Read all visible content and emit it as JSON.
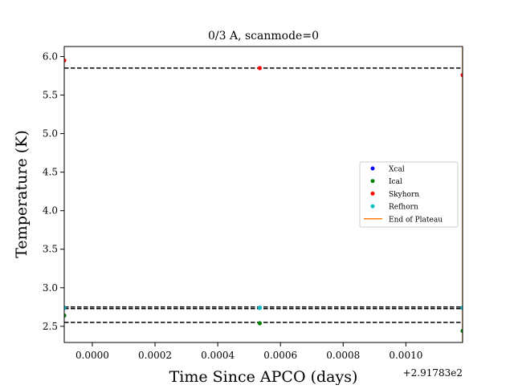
{
  "chart_data": {
    "type": "scatter",
    "title": "0/3 A, scanmode=0",
    "xlabel": "Time Since APCO (days)",
    "ylabel": "Temperature (K)",
    "x_offset_label": "+2.91783e2",
    "xlim": [
      -8.95e-05,
      0.0011809
    ],
    "ylim": [
      2.29,
      6.13
    ],
    "x_ticks": [
      0.0,
      0.0002,
      0.0004,
      0.0006,
      0.0008,
      0.001
    ],
    "x_tick_labels": [
      "0.0000",
      "0.0002",
      "0.0004",
      "0.0006",
      "0.0008",
      "0.0010"
    ],
    "y_ticks": [
      2.5,
      3.0,
      3.5,
      4.0,
      4.5,
      5.0,
      5.5,
      6.0
    ],
    "y_tick_labels": [
      "2.5",
      "3.0",
      "3.5",
      "4.0",
      "4.5",
      "5.0",
      "5.5",
      "6.0"
    ],
    "grid": false,
    "legend_position": "center-right",
    "series": [
      {
        "name": "Xcal",
        "color": "#0000ff",
        "x": [
          -8.95e-05,
          0.000534,
          0.0011809
        ],
        "y": [
          2.74,
          2.74,
          2.74
        ]
      },
      {
        "name": "Ical",
        "color": "#008000",
        "x": [
          -8.95e-05,
          0.000534,
          0.0011809
        ],
        "y": [
          2.64,
          2.54,
          2.44
        ]
      },
      {
        "name": "Skyhorn",
        "color": "#ff0000",
        "x": [
          -8.95e-05,
          0.000534,
          0.0011809
        ],
        "y": [
          5.95,
          5.85,
          5.76
        ]
      },
      {
        "name": "Refhorn",
        "color": "#00bfbf",
        "x": [
          -8.95e-05,
          0.000534,
          0.0011809
        ],
        "y": [
          2.74,
          2.74,
          2.74
        ]
      }
    ],
    "vertical_lines": [
      {
        "name": "End of Plateau",
        "color": "#ff7f0e",
        "x": 0.0011809
      }
    ],
    "reference_lines": [
      {
        "y": 5.85,
        "color": "#000000",
        "style": "dashed"
      },
      {
        "y": 2.75,
        "color": "#000000",
        "style": "dashed"
      },
      {
        "y": 2.73,
        "color": "#000000",
        "style": "dashed"
      },
      {
        "y": 2.55,
        "color": "#000000",
        "style": "dashed"
      }
    ]
  }
}
